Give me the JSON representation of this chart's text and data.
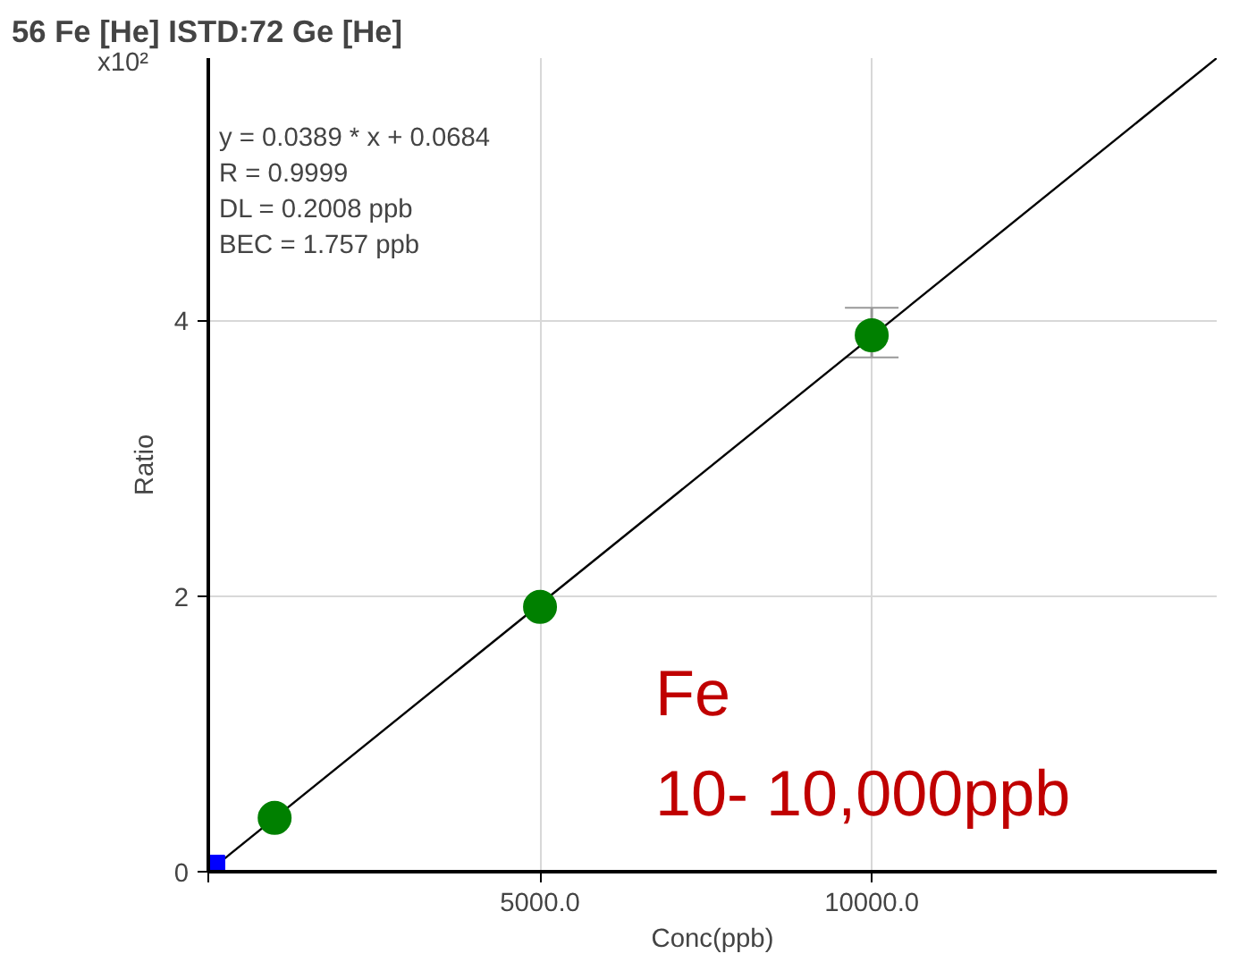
{
  "chart_data": {
    "type": "scatter",
    "title": "56 Fe [He] ISTD:72 Ge [He]",
    "xlabel": "Conc(ppb)",
    "ylabel": "Ratio",
    "annotations": [
      "x10²",
      "y = 0.0389 * x  + 0.0684",
      "R =  0.9999",
      "DL = 0.2008 ppb",
      "BEC = 1.757 ppb",
      "Fe",
      "10- 10,000ppb"
    ],
    "xlim": [
      0,
      15200
    ],
    "ylim": [
      0,
      5.9
    ],
    "xticks": [
      {
        "value": 0,
        "label": null
      },
      {
        "value": 5000,
        "label": "5000.0"
      },
      {
        "value": 10000,
        "label": "10000.0"
      }
    ],
    "yticks": [
      0,
      2,
      4
    ],
    "grid": true,
    "series": [
      {
        "type": "line",
        "color": "#000000",
        "x": [
          0,
          15200
        ],
        "values": [
          0,
          5.9
        ],
        "marker": "none",
        "line_style": "solid"
      },
      {
        "color": "#0000ff",
        "marker": "square",
        "x": [
          0
        ],
        "values": [
          0.0
        ]
      },
      {
        "color": "#008000",
        "marker": "circle",
        "x": [
          1000,
          5000,
          10000
        ],
        "values": [
          0.39,
          1.92,
          3.89
        ],
        "errors": [
          null,
          null,
          [
            3.73,
            4.09
          ]
        ]
      }
    ]
  }
}
